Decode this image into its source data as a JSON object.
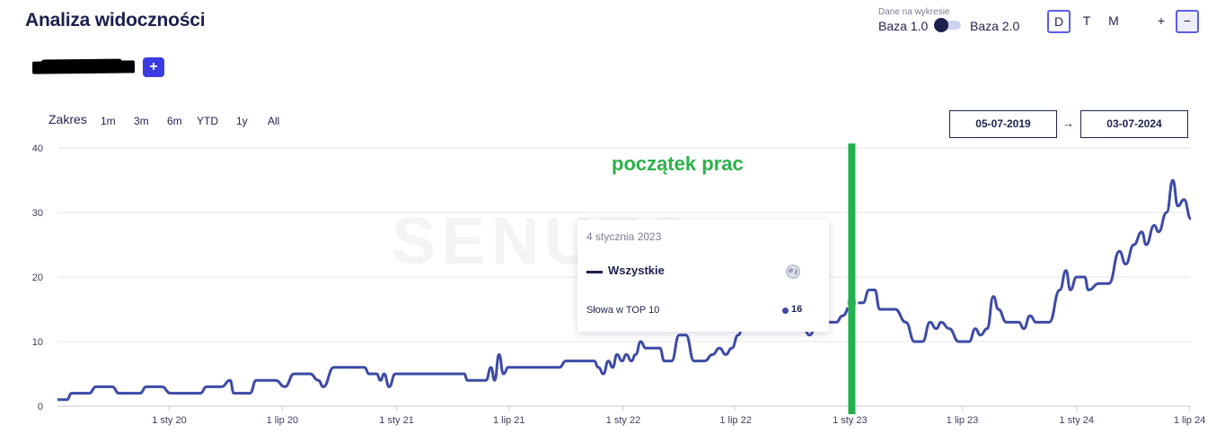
{
  "header": {
    "title": "Analiza widoczności",
    "add_label": "+"
  },
  "baza": {
    "caption": "Dane na wykresie",
    "option_1": "Baza 1.0",
    "option_2": "Baza 2.0"
  },
  "period_buttons": [
    "D",
    "T",
    "M"
  ],
  "period_selected": "D",
  "zoom_buttons": [
    "+",
    "−"
  ],
  "zakres": {
    "label": "Zakres",
    "options": [
      "1m",
      "3m",
      "6m",
      "YTD",
      "1y",
      "All"
    ]
  },
  "date_range": {
    "from": "05-07-2019",
    "arrow": "→",
    "to": "03-07-2024"
  },
  "tooltip": {
    "date": "4 stycznia 2023",
    "series_name": "Wszystkie",
    "metric_label": "Słowa w TOP 10",
    "metric_value": "16"
  },
  "annotation": {
    "text": "początek prac",
    "date": "2023-01-04",
    "color": "#22b14c"
  },
  "watermark": "SENUTO",
  "colors": {
    "series": "#3d4aa6",
    "accent": "#3a3be0",
    "title": "#1c1f4e"
  },
  "chart_data": {
    "type": "line",
    "title": "",
    "xlabel": "",
    "ylabel": "",
    "ylim": [
      0,
      40
    ],
    "xlim": [
      "2019-07-05",
      "2024-07-03"
    ],
    "y_ticks": [
      0,
      10,
      20,
      30,
      40
    ],
    "x_ticks": [
      {
        "date": "2020-01-01",
        "label": "1 sty 20"
      },
      {
        "date": "2020-07-01",
        "label": "1 lip 20"
      },
      {
        "date": "2021-01-01",
        "label": "1 sty 21"
      },
      {
        "date": "2021-07-01",
        "label": "1 lip 21"
      },
      {
        "date": "2022-01-01",
        "label": "1 sty 22"
      },
      {
        "date": "2022-07-01",
        "label": "1 lip 22"
      },
      {
        "date": "2023-01-01",
        "label": "1 sty 23"
      },
      {
        "date": "2023-07-01",
        "label": "1 lip 23"
      },
      {
        "date": "2024-01-01",
        "label": "1 sty 24"
      },
      {
        "date": "2024-07-01",
        "label": "1 lip 24"
      }
    ],
    "grid": true,
    "series": [
      {
        "name": "Wszystkie",
        "points": [
          [
            "2019-07-05",
            1
          ],
          [
            "2019-07-20",
            1
          ],
          [
            "2019-07-28",
            2
          ],
          [
            "2019-08-25",
            2
          ],
          [
            "2019-09-05",
            3
          ],
          [
            "2019-10-01",
            3
          ],
          [
            "2019-10-12",
            2
          ],
          [
            "2019-11-15",
            2
          ],
          [
            "2019-11-25",
            3
          ],
          [
            "2019-12-20",
            3
          ],
          [
            "2020-01-03",
            2
          ],
          [
            "2020-02-20",
            2
          ],
          [
            "2020-03-01",
            3
          ],
          [
            "2020-03-25",
            3
          ],
          [
            "2020-04-08",
            4
          ],
          [
            "2020-04-14",
            2
          ],
          [
            "2020-05-10",
            2
          ],
          [
            "2020-05-20",
            4
          ],
          [
            "2020-06-20",
            4
          ],
          [
            "2020-07-05",
            3
          ],
          [
            "2020-07-20",
            5
          ],
          [
            "2020-08-15",
            5
          ],
          [
            "2020-08-28",
            4
          ],
          [
            "2020-09-05",
            3
          ],
          [
            "2020-09-22",
            6
          ],
          [
            "2020-11-10",
            6
          ],
          [
            "2020-11-18",
            5
          ],
          [
            "2020-11-30",
            5
          ],
          [
            "2020-12-06",
            4
          ],
          [
            "2020-12-12",
            5
          ],
          [
            "2020-12-20",
            3
          ],
          [
            "2020-12-30",
            5
          ],
          [
            "2021-04-20",
            5
          ],
          [
            "2021-04-25",
            4
          ],
          [
            "2021-05-25",
            4
          ],
          [
            "2021-06-02",
            6
          ],
          [
            "2021-06-08",
            4
          ],
          [
            "2021-06-15",
            8
          ],
          [
            "2021-06-22",
            5
          ],
          [
            "2021-06-30",
            6
          ],
          [
            "2021-09-20",
            6
          ],
          [
            "2021-10-01",
            7
          ],
          [
            "2021-11-15",
            7
          ],
          [
            "2021-11-22",
            6
          ],
          [
            "2021-11-30",
            5
          ],
          [
            "2021-12-08",
            7
          ],
          [
            "2021-12-15",
            6
          ],
          [
            "2021-12-22",
            8
          ],
          [
            "2021-12-30",
            7
          ],
          [
            "2022-01-06",
            8
          ],
          [
            "2022-01-14",
            7
          ],
          [
            "2022-01-21",
            8
          ],
          [
            "2022-01-29",
            10
          ],
          [
            "2022-02-06",
            9
          ],
          [
            "2022-03-01",
            9
          ],
          [
            "2022-03-08",
            7
          ],
          [
            "2022-03-20",
            7
          ],
          [
            "2022-04-01",
            11
          ],
          [
            "2022-04-12",
            11
          ],
          [
            "2022-04-25",
            7
          ],
          [
            "2022-05-12",
            7
          ],
          [
            "2022-05-25",
            8
          ],
          [
            "2022-06-05",
            9
          ],
          [
            "2022-06-15",
            8
          ],
          [
            "2022-06-25",
            9
          ],
          [
            "2022-07-05",
            11
          ],
          [
            "2022-07-15",
            13
          ],
          [
            "2022-07-30",
            13
          ],
          [
            "2022-08-10",
            15
          ],
          [
            "2022-08-20",
            13
          ],
          [
            "2022-09-05",
            13
          ],
          [
            "2022-09-18",
            17
          ],
          [
            "2022-10-01",
            13
          ],
          [
            "2022-10-15",
            13
          ],
          [
            "2022-10-28",
            11
          ],
          [
            "2022-11-10",
            13
          ],
          [
            "2022-12-10",
            13
          ],
          [
            "2022-12-20",
            14
          ],
          [
            "2023-01-04",
            16
          ],
          [
            "2023-01-12",
            16
          ],
          [
            "2023-01-22",
            16
          ],
          [
            "2023-02-01",
            18
          ],
          [
            "2023-02-10",
            18
          ],
          [
            "2023-02-18",
            15
          ],
          [
            "2023-03-15",
            15
          ],
          [
            "2023-04-01",
            13
          ],
          [
            "2023-04-15",
            10
          ],
          [
            "2023-04-28",
            10
          ],
          [
            "2023-05-10",
            13
          ],
          [
            "2023-05-20",
            12
          ],
          [
            "2023-05-28",
            13
          ],
          [
            "2023-06-10",
            12
          ],
          [
            "2023-06-25",
            10
          ],
          [
            "2023-07-12",
            10
          ],
          [
            "2023-07-22",
            12
          ],
          [
            "2023-07-30",
            11
          ],
          [
            "2023-08-10",
            12
          ],
          [
            "2023-08-20",
            17
          ],
          [
            "2023-08-28",
            15
          ],
          [
            "2023-09-10",
            13
          ],
          [
            "2023-09-30",
            13
          ],
          [
            "2023-10-08",
            12
          ],
          [
            "2023-10-18",
            14
          ],
          [
            "2023-10-28",
            13
          ],
          [
            "2023-11-18",
            13
          ],
          [
            "2023-12-05",
            18
          ],
          [
            "2023-12-15",
            21
          ],
          [
            "2023-12-22",
            18
          ],
          [
            "2024-01-01",
            20
          ],
          [
            "2024-01-14",
            20
          ],
          [
            "2024-01-20",
            18
          ],
          [
            "2024-02-06",
            19
          ],
          [
            "2024-02-22",
            19
          ],
          [
            "2024-03-10",
            24
          ],
          [
            "2024-03-20",
            22
          ],
          [
            "2024-04-02",
            25
          ],
          [
            "2024-04-15",
            27
          ],
          [
            "2024-04-22",
            25
          ],
          [
            "2024-05-05",
            28
          ],
          [
            "2024-05-12",
            27
          ],
          [
            "2024-05-25",
            30
          ],
          [
            "2024-06-04",
            35
          ],
          [
            "2024-06-12",
            31
          ],
          [
            "2024-06-22",
            32
          ],
          [
            "2024-07-03",
            29
          ]
        ]
      }
    ]
  }
}
